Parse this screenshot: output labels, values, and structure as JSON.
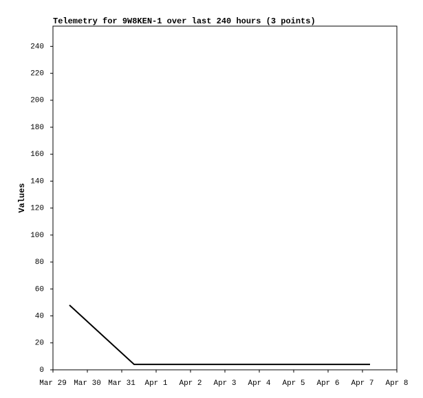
{
  "chart_data": {
    "type": "line",
    "title": "Telemetry for 9W8KEN-1 over last 240 hours (3 points)",
    "y_label": "Values",
    "x": [
      0.48,
      2.36,
      9.22
    ],
    "series": [
      {
        "name": "Values",
        "color": "#000000",
        "values": [
          48,
          4,
          4
        ]
      }
    ],
    "xlim": [
      0,
      10
    ],
    "xticks": [
      {
        "value": 0,
        "label": "Mar 29"
      },
      {
        "value": 1,
        "label": "Mar 30"
      },
      {
        "value": 2,
        "label": "Mar 31"
      },
      {
        "value": 3,
        "label": "Apr 1"
      },
      {
        "value": 4,
        "label": "Apr 2"
      },
      {
        "value": 5,
        "label": "Apr 3"
      },
      {
        "value": 6,
        "label": "Apr 4"
      },
      {
        "value": 7,
        "label": "Apr 5"
      },
      {
        "value": 8,
        "label": "Apr 6"
      },
      {
        "value": 9,
        "label": "Apr 7"
      },
      {
        "value": 10,
        "label": "Apr 8"
      }
    ],
    "ylim": [
      0,
      255
    ],
    "yticks": [
      0,
      20,
      40,
      60,
      80,
      100,
      120,
      140,
      160,
      180,
      200,
      220,
      240
    ],
    "grid": false
  }
}
